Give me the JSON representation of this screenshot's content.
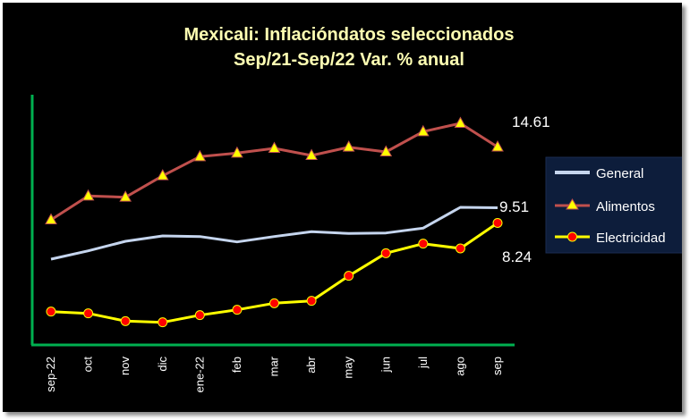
{
  "chart_data": {
    "type": "line",
    "title": "Mexicali: Inflacióndatos seleccionados",
    "subtitle": "Sep/21-Sep/22 Var. % anual",
    "categories": [
      "sep-22",
      "oct",
      "nov",
      "dic",
      "ene-22",
      "feb",
      "mar",
      "abr",
      "may",
      "jun",
      "jul",
      "ago",
      "sep"
    ],
    "ylim": [
      -2,
      19
    ],
    "grid": false,
    "legend_position": "right",
    "series": [
      {
        "name": "General",
        "color": "#c5d5ee",
        "marker": "none",
        "values": [
          5.2,
          5.9,
          6.7,
          7.15,
          7.1,
          6.65,
          7.1,
          7.5,
          7.35,
          7.4,
          7.8,
          9.55,
          9.51
        ],
        "end_label": "9.51"
      },
      {
        "name": "Alimentos",
        "color": "#c0504d",
        "marker": "triangle",
        "marker_color": "#ffff00",
        "values": [
          8.5,
          10.5,
          10.4,
          12.2,
          13.8,
          14.1,
          14.5,
          13.9,
          14.6,
          14.2,
          15.9,
          16.6,
          14.61
        ],
        "end_label": "14.61"
      },
      {
        "name": "Electricidad",
        "color": "#ffff00",
        "marker": "circle",
        "marker_color": "#ff0000",
        "values": [
          0.8,
          0.65,
          0.0,
          -0.1,
          0.5,
          0.95,
          1.5,
          1.7,
          3.8,
          5.7,
          6.5,
          6.1,
          8.24
        ],
        "end_label": "8.24"
      }
    ]
  }
}
